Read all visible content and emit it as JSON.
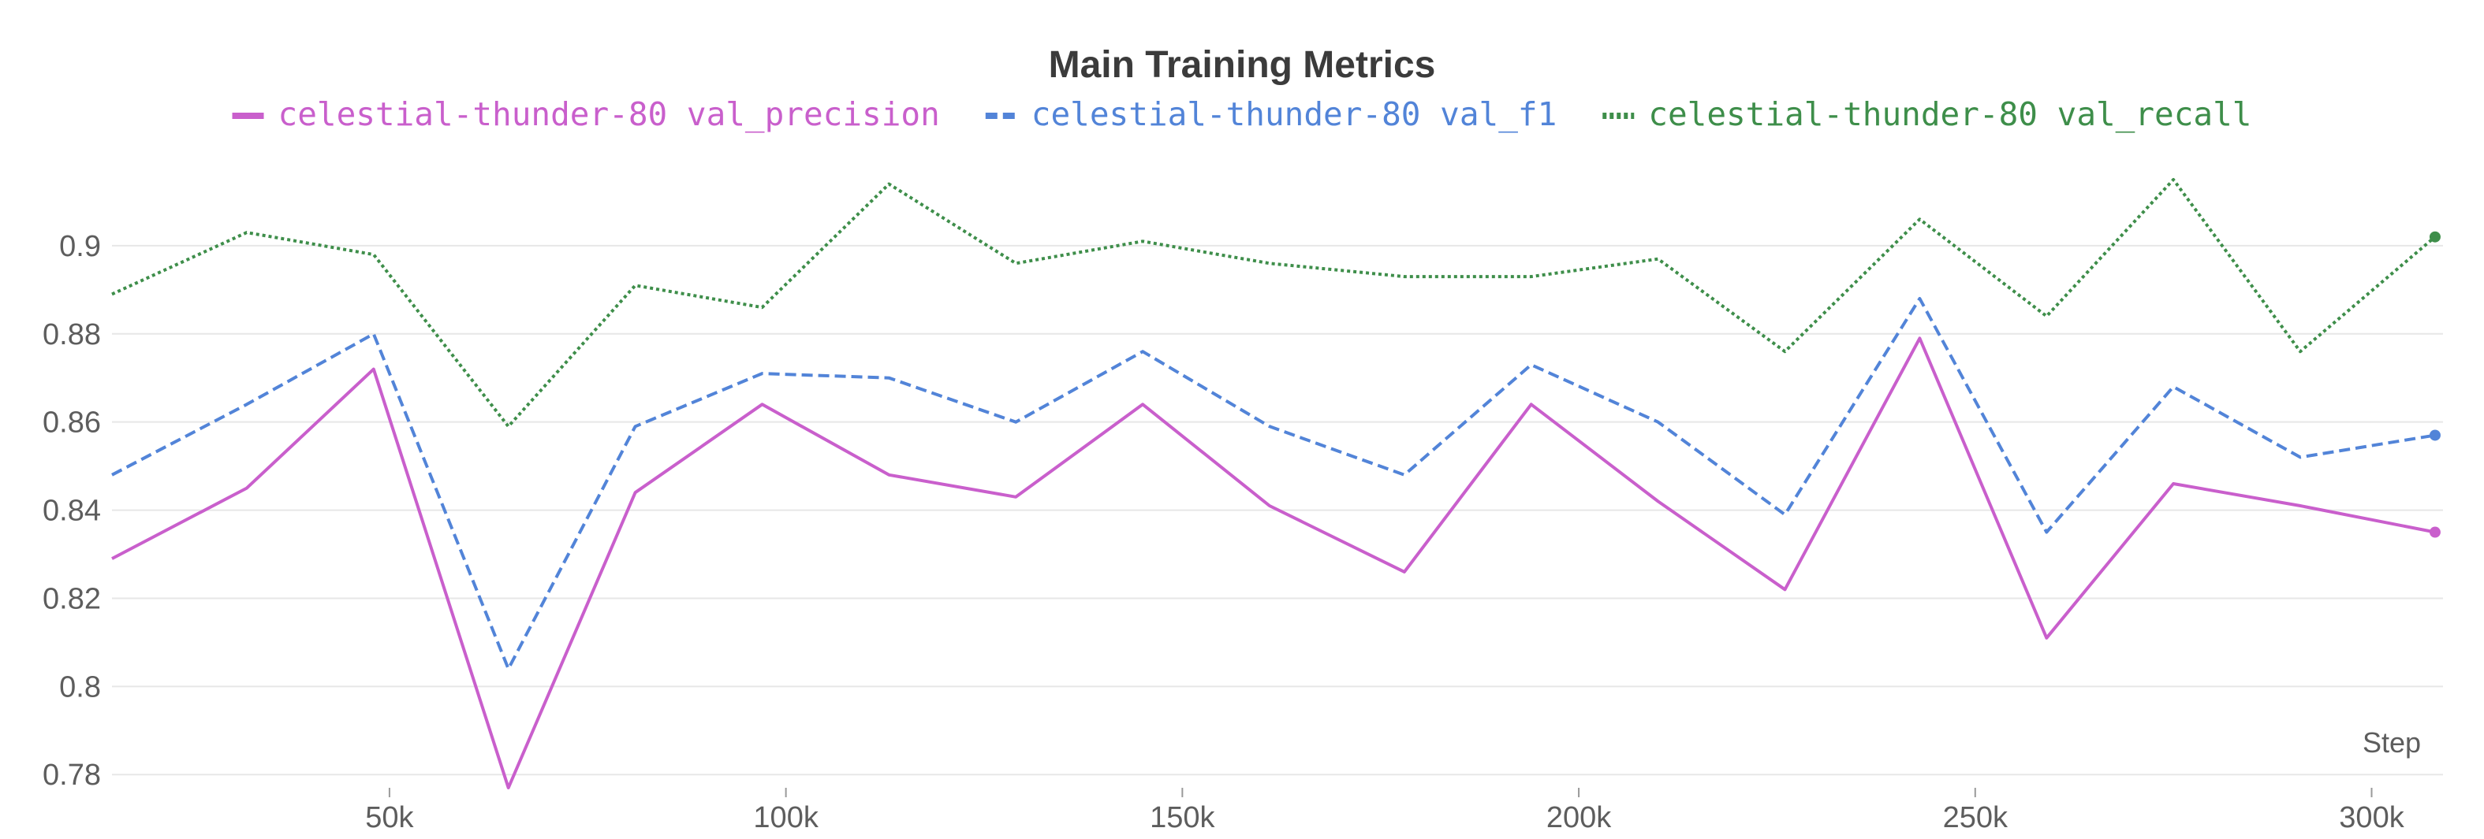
{
  "chart_data": {
    "type": "line",
    "title": "Main Training Metrics",
    "xlabel": "Step",
    "ylabel": "",
    "xlim": [
      15000,
      309000
    ],
    "ylim": [
      0.777,
      0.915
    ],
    "x_ticks": [
      50000,
      100000,
      150000,
      200000,
      250000,
      300000
    ],
    "x_tick_labels": [
      "50k",
      "100k",
      "150k",
      "200k",
      "250k",
      "300k"
    ],
    "y_ticks": [
      0.78,
      0.8,
      0.82,
      0.84,
      0.86,
      0.88,
      0.9
    ],
    "y_tick_labels": [
      "0.78",
      "0.8",
      "0.82",
      "0.84",
      "0.86",
      "0.88",
      "0.9"
    ],
    "grid": true,
    "legend_position": "top",
    "x": [
      15000,
      32000,
      48000,
      65000,
      81000,
      97000,
      113000,
      129000,
      145000,
      161000,
      178000,
      194000,
      210000,
      226000,
      243000,
      259000,
      275000,
      291000,
      308000
    ],
    "series": [
      {
        "name": "celestial-thunder-80 val_precision",
        "color": "#c95fcc",
        "dash": "solid",
        "values": [
          0.829,
          0.845,
          0.872,
          0.777,
          0.844,
          0.864,
          0.848,
          0.843,
          0.864,
          0.841,
          0.826,
          0.864,
          0.842,
          0.822,
          0.879,
          0.811,
          0.846,
          0.841,
          0.835
        ]
      },
      {
        "name": "celestial-thunder-80 val_f1",
        "color": "#5284d8",
        "dash": "dashed",
        "values": [
          0.848,
          0.864,
          0.88,
          0.804,
          0.859,
          0.871,
          0.87,
          0.86,
          0.876,
          0.859,
          0.848,
          0.873,
          0.86,
          0.839,
          0.888,
          0.835,
          0.868,
          0.852,
          0.857
        ]
      },
      {
        "name": "celestial-thunder-80 val_recall",
        "color": "#3e8e4a",
        "dash": "dotted",
        "values": [
          0.889,
          0.903,
          0.898,
          0.859,
          0.891,
          0.886,
          0.914,
          0.896,
          0.901,
          0.896,
          0.893,
          0.893,
          0.897,
          0.876,
          0.906,
          0.884,
          0.915,
          0.876,
          0.902
        ]
      }
    ]
  }
}
